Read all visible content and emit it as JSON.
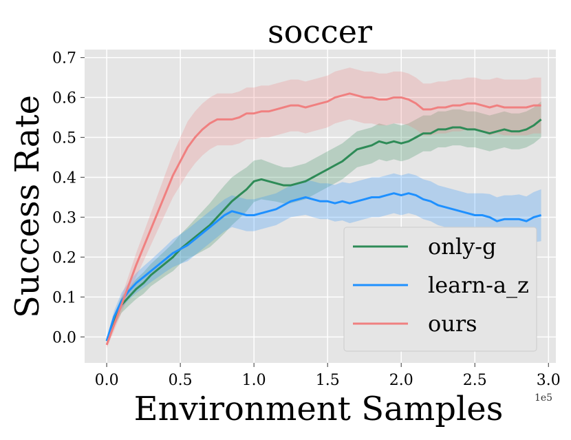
{
  "chart_data": {
    "type": "line",
    "title": "soccer",
    "xlabel": "Environment Samples",
    "ylabel": "Success Rate",
    "x_offset_label": "1e5",
    "xlim": [
      -0.15,
      3.05
    ],
    "ylim": [
      -0.065,
      0.72
    ],
    "x_ticks": [
      0.0,
      0.5,
      1.0,
      1.5,
      2.0,
      2.5,
      3.0
    ],
    "x_tick_labels": [
      "0.0",
      "0.5",
      "1.0",
      "1.5",
      "2.0",
      "2.5",
      "3.0"
    ],
    "y_ticks": [
      0.0,
      0.1,
      0.2,
      0.3,
      0.4,
      0.5,
      0.6,
      0.7
    ],
    "y_tick_labels": [
      "0.0",
      "0.1",
      "0.2",
      "0.3",
      "0.4",
      "0.5",
      "0.6",
      "0.7"
    ],
    "grid": true,
    "legend_position": "bottom-right",
    "background": "#e5e5e5",
    "series": [
      {
        "name": "only-g",
        "color": "#2e8b57",
        "x": [
          0.0,
          0.05,
          0.1,
          0.15,
          0.2,
          0.25,
          0.3,
          0.35,
          0.4,
          0.45,
          0.5,
          0.55,
          0.6,
          0.65,
          0.7,
          0.75,
          0.8,
          0.85,
          0.9,
          0.95,
          1.0,
          1.05,
          1.1,
          1.15,
          1.2,
          1.25,
          1.3,
          1.35,
          1.4,
          1.45,
          1.5,
          1.55,
          1.6,
          1.65,
          1.7,
          1.75,
          1.8,
          1.85,
          1.9,
          1.95,
          2.0,
          2.05,
          2.1,
          2.15,
          2.2,
          2.25,
          2.3,
          2.35,
          2.4,
          2.45,
          2.5,
          2.55,
          2.6,
          2.65,
          2.7,
          2.75,
          2.8,
          2.85,
          2.9,
          2.95
        ],
        "y": [
          -0.01,
          0.04,
          0.08,
          0.1,
          0.12,
          0.135,
          0.155,
          0.17,
          0.185,
          0.2,
          0.22,
          0.235,
          0.25,
          0.265,
          0.28,
          0.3,
          0.32,
          0.34,
          0.355,
          0.37,
          0.39,
          0.395,
          0.39,
          0.385,
          0.38,
          0.38,
          0.385,
          0.39,
          0.4,
          0.41,
          0.42,
          0.43,
          0.44,
          0.455,
          0.47,
          0.475,
          0.48,
          0.49,
          0.485,
          0.49,
          0.485,
          0.49,
          0.5,
          0.51,
          0.51,
          0.52,
          0.52,
          0.525,
          0.525,
          0.52,
          0.52,
          0.515,
          0.51,
          0.515,
          0.52,
          0.515,
          0.515,
          0.52,
          0.53,
          0.545
        ],
        "band": [
          0.008,
          0.015,
          0.02,
          0.022,
          0.025,
          0.027,
          0.028,
          0.03,
          0.032,
          0.035,
          0.037,
          0.04,
          0.045,
          0.05,
          0.055,
          0.058,
          0.06,
          0.06,
          0.058,
          0.055,
          0.052,
          0.05,
          0.048,
          0.046,
          0.045,
          0.045,
          0.045,
          0.045,
          0.045,
          0.045,
          0.045,
          0.045,
          0.045,
          0.045,
          0.045,
          0.045,
          0.045,
          0.045,
          0.045,
          0.045,
          0.045,
          0.045,
          0.045,
          0.045,
          0.045,
          0.045,
          0.045,
          0.045,
          0.045,
          0.045,
          0.045,
          0.045,
          0.045,
          0.045,
          0.045,
          0.045,
          0.045,
          0.045,
          0.045,
          0.045
        ]
      },
      {
        "name": "learn-a_z",
        "color": "#1e90ff",
        "x": [
          0.0,
          0.05,
          0.1,
          0.15,
          0.2,
          0.25,
          0.3,
          0.35,
          0.4,
          0.45,
          0.5,
          0.55,
          0.6,
          0.65,
          0.7,
          0.75,
          0.8,
          0.85,
          0.9,
          0.95,
          1.0,
          1.05,
          1.1,
          1.15,
          1.2,
          1.25,
          1.3,
          1.35,
          1.4,
          1.45,
          1.5,
          1.55,
          1.6,
          1.65,
          1.7,
          1.75,
          1.8,
          1.85,
          1.9,
          1.95,
          2.0,
          2.05,
          2.1,
          2.15,
          2.2,
          2.25,
          2.3,
          2.35,
          2.4,
          2.45,
          2.5,
          2.55,
          2.6,
          2.65,
          2.7,
          2.75,
          2.8,
          2.85,
          2.9,
          2.95
        ],
        "y": [
          -0.01,
          0.05,
          0.09,
          0.115,
          0.135,
          0.15,
          0.165,
          0.18,
          0.195,
          0.21,
          0.22,
          0.23,
          0.245,
          0.26,
          0.275,
          0.29,
          0.305,
          0.315,
          0.31,
          0.305,
          0.305,
          0.31,
          0.315,
          0.32,
          0.33,
          0.34,
          0.345,
          0.35,
          0.345,
          0.34,
          0.34,
          0.335,
          0.34,
          0.335,
          0.34,
          0.345,
          0.35,
          0.35,
          0.355,
          0.36,
          0.355,
          0.36,
          0.355,
          0.345,
          0.34,
          0.33,
          0.325,
          0.32,
          0.315,
          0.31,
          0.305,
          0.305,
          0.3,
          0.29,
          0.295,
          0.295,
          0.295,
          0.29,
          0.3,
          0.305
        ],
        "band": [
          0.008,
          0.015,
          0.02,
          0.022,
          0.025,
          0.027,
          0.028,
          0.03,
          0.032,
          0.035,
          0.037,
          0.04,
          0.04,
          0.04,
          0.04,
          0.04,
          0.04,
          0.04,
          0.04,
          0.04,
          0.04,
          0.04,
          0.04,
          0.04,
          0.04,
          0.04,
          0.042,
          0.044,
          0.045,
          0.045,
          0.045,
          0.046,
          0.048,
          0.05,
          0.05,
          0.05,
          0.05,
          0.05,
          0.05,
          0.05,
          0.05,
          0.05,
          0.05,
          0.05,
          0.05,
          0.05,
          0.05,
          0.05,
          0.05,
          0.05,
          0.055,
          0.055,
          0.058,
          0.06,
          0.06,
          0.06,
          0.062,
          0.062,
          0.063,
          0.065
        ]
      },
      {
        "name": "ours",
        "color": "#f08080",
        "x": [
          0.0,
          0.05,
          0.1,
          0.15,
          0.2,
          0.25,
          0.3,
          0.35,
          0.4,
          0.45,
          0.5,
          0.55,
          0.6,
          0.65,
          0.7,
          0.75,
          0.8,
          0.85,
          0.9,
          0.95,
          1.0,
          1.05,
          1.1,
          1.15,
          1.2,
          1.25,
          1.3,
          1.35,
          1.4,
          1.45,
          1.5,
          1.55,
          1.6,
          1.65,
          1.7,
          1.75,
          1.8,
          1.85,
          1.9,
          1.95,
          2.0,
          2.05,
          2.1,
          2.15,
          2.2,
          2.25,
          2.3,
          2.35,
          2.4,
          2.45,
          2.5,
          2.55,
          2.6,
          2.65,
          2.7,
          2.75,
          2.8,
          2.85,
          2.9,
          2.95
        ],
        "y": [
          -0.02,
          0.03,
          0.08,
          0.13,
          0.18,
          0.225,
          0.27,
          0.315,
          0.36,
          0.405,
          0.44,
          0.475,
          0.5,
          0.52,
          0.535,
          0.545,
          0.545,
          0.545,
          0.55,
          0.56,
          0.56,
          0.565,
          0.565,
          0.57,
          0.575,
          0.58,
          0.58,
          0.575,
          0.58,
          0.585,
          0.59,
          0.6,
          0.605,
          0.61,
          0.605,
          0.6,
          0.6,
          0.595,
          0.595,
          0.6,
          0.6,
          0.595,
          0.585,
          0.57,
          0.57,
          0.575,
          0.575,
          0.58,
          0.58,
          0.585,
          0.585,
          0.58,
          0.575,
          0.58,
          0.575,
          0.575,
          0.575,
          0.575,
          0.58,
          0.58
        ],
        "band": [
          0.008,
          0.015,
          0.02,
          0.025,
          0.03,
          0.035,
          0.04,
          0.045,
          0.05,
          0.055,
          0.06,
          0.065,
          0.065,
          0.065,
          0.065,
          0.065,
          0.065,
          0.065,
          0.065,
          0.065,
          0.065,
          0.065,
          0.065,
          0.065,
          0.065,
          0.065,
          0.065,
          0.065,
          0.065,
          0.065,
          0.065,
          0.065,
          0.065,
          0.065,
          0.065,
          0.065,
          0.065,
          0.065,
          0.065,
          0.065,
          0.065,
          0.065,
          0.065,
          0.065,
          0.065,
          0.065,
          0.065,
          0.065,
          0.065,
          0.065,
          0.065,
          0.065,
          0.07,
          0.07,
          0.07,
          0.07,
          0.07,
          0.07,
          0.07,
          0.07
        ]
      }
    ]
  }
}
